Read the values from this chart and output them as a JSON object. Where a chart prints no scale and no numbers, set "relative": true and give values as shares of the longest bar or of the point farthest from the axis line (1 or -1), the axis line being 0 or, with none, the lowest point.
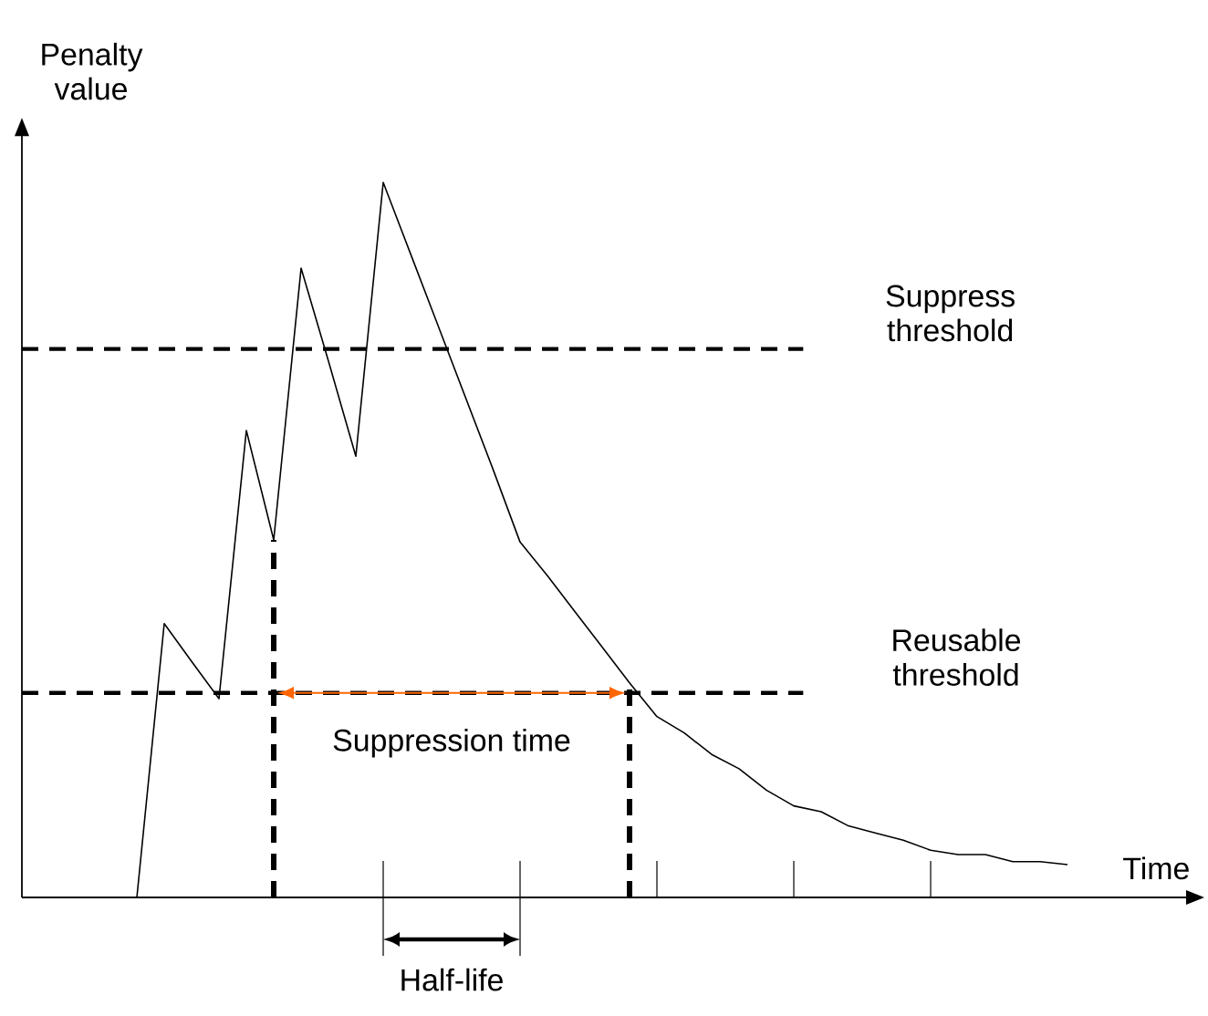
{
  "chart_data": {
    "type": "line",
    "relative": true,
    "color": "#000000",
    "xlabel": "Time",
    "ylabel": "Penalty value",
    "categories": [
      null,
      null,
      null,
      null,
      null,
      null,
      null,
      null,
      null,
      null,
      null,
      null,
      null,
      null,
      null,
      null,
      null,
      null,
      null,
      null,
      null,
      null,
      null,
      null,
      null,
      null,
      null,
      null,
      null,
      null,
      null,
      null,
      null,
      null,
      null
    ],
    "values": [
      0,
      0.383,
      0.33,
      0.278,
      0.653,
      0.5,
      0.88,
      0.75,
      0.617,
      1.0,
      0.9,
      0.8,
      0.7,
      0.6,
      0.497,
      0.45,
      0.4,
      0.35,
      0.3,
      0.253,
      0.23,
      0.2,
      0.18,
      0.15,
      0.128,
      0.12,
      0.1,
      0.09,
      0.08,
      0.066,
      0.06,
      0.06,
      0.05,
      0.05,
      0.046
    ],
    "ref_lines": [
      {
        "axis": "y",
        "value": 0.767,
        "label": "Suppress threshold",
        "line_style": "dashed",
        "color": "#000000"
      },
      {
        "axis": "y",
        "value": 0.286,
        "label": "Reusable threshold",
        "line_style": "dashed",
        "color": "#000000"
      }
    ],
    "annotations": [
      "Suppression time",
      "Half-life"
    ]
  }
}
